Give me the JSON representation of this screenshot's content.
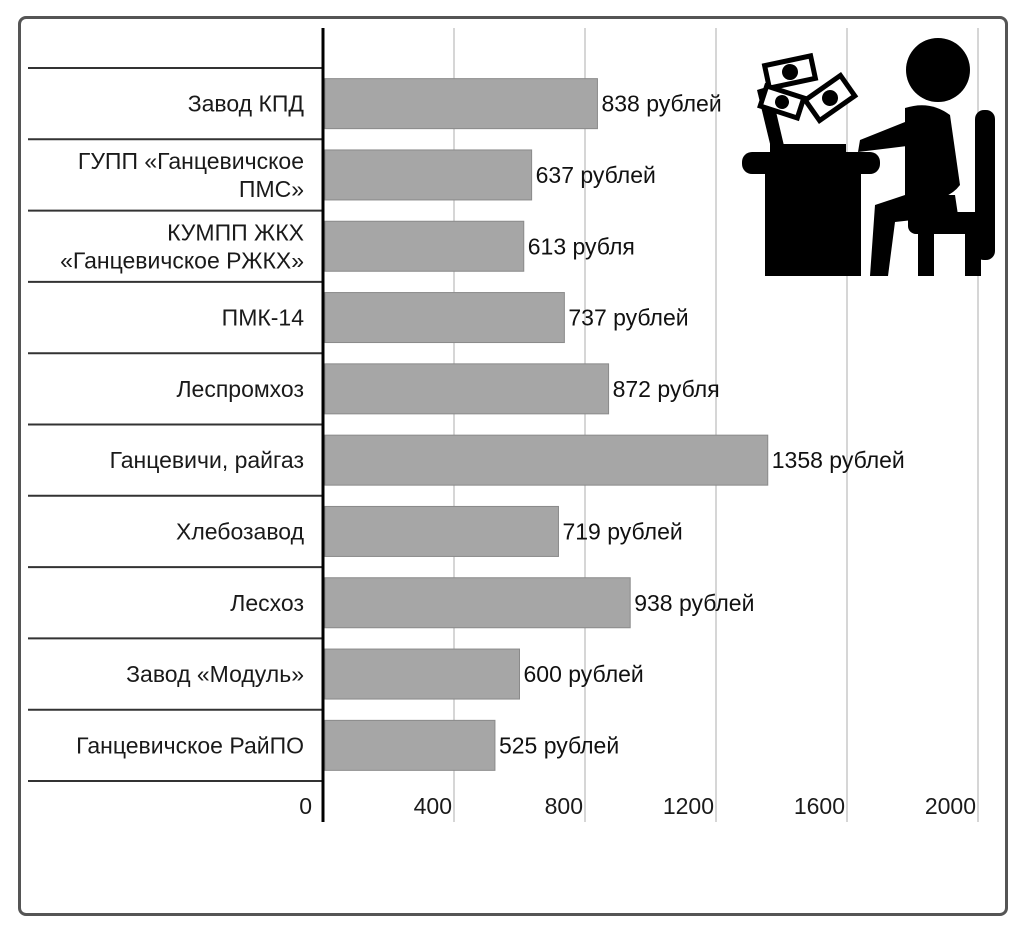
{
  "chart_data": {
    "type": "bar",
    "orientation": "horizontal",
    "categories": [
      [
        "Завод КПД"
      ],
      [
        "ГУПП «Ганцевичское",
        "ПМС»"
      ],
      [
        "КУМПП ЖКХ",
        "«Ганцевичское РЖКХ»"
      ],
      [
        "ПМК-14"
      ],
      [
        "Леспромхоз"
      ],
      [
        "Ганцевичи, райгаз"
      ],
      [
        "Хлебозавод"
      ],
      [
        "Лесхоз"
      ],
      [
        "Завод «Модуль»"
      ],
      [
        "Ганцевичское РайПО"
      ]
    ],
    "values": [
      838,
      637,
      613,
      737,
      872,
      1358,
      719,
      938,
      600,
      525
    ],
    "value_labels": [
      "838 рублей",
      "637 рублей",
      "613 рубля",
      "737 рублей",
      "872 рубля",
      "1358 рублей",
      "719 рублей",
      "938 рублей",
      "600 рублей",
      "525 рублей"
    ],
    "x_ticks": [
      "0",
      "400",
      "800",
      "1200",
      "1600",
      "2000"
    ],
    "xlim": [
      0,
      2000
    ],
    "bar_color": "#a6a6a6",
    "grid": true,
    "title": "",
    "xlabel": "",
    "ylabel": ""
  },
  "illustration": {
    "icon": "person-at-desk-with-money-icon"
  }
}
